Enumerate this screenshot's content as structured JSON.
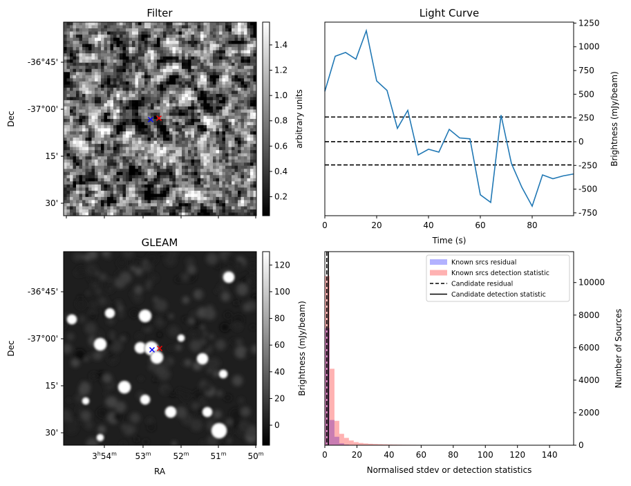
{
  "chart_data": [
    {
      "type": "heatmap",
      "title": "Filter",
      "ylabel": "Dec",
      "colorbar": {
        "label": "arbitrary units",
        "range": [
          0.05,
          1.58
        ],
        "ticks": [
          "0.2",
          "0.4",
          "0.6",
          "0.8",
          "1.0",
          "1.2",
          "1.4"
        ],
        "tick_values": [
          0.2,
          0.4,
          0.6,
          0.8,
          1.0,
          1.2,
          1.4
        ],
        "colormap": "gray"
      },
      "yticks": [
        "-36°45'",
        "-37°00'",
        "15'",
        "30'"
      ],
      "markers": [
        {
          "symbol": "x",
          "color": "#0000ff"
        },
        {
          "symbol": "x",
          "color": "#ff0000"
        }
      ]
    },
    {
      "type": "line",
      "title": "Light Curve",
      "xlabel": "Time (s)",
      "ylabel": "Brightness (mJy/beam)",
      "xlim": [
        0,
        96
      ],
      "ylim": [
        -780,
        1260
      ],
      "xticks": [
        0,
        20,
        40,
        60,
        80
      ],
      "yticks": [
        -750,
        -500,
        -250,
        0,
        250,
        500,
        750,
        1000,
        1250
      ],
      "y_axis_side": "right",
      "series": [
        {
          "color": "#1f77b4",
          "x": [
            0,
            4,
            8,
            12,
            16,
            20,
            24,
            28,
            32,
            36,
            40,
            44,
            48,
            52,
            56,
            60,
            64,
            68,
            72,
            76,
            80,
            84,
            88,
            92,
            96
          ],
          "values": [
            530,
            900,
            940,
            870,
            1170,
            640,
            540,
            140,
            330,
            -140,
            -80,
            -110,
            130,
            40,
            30,
            -560,
            -640,
            280,
            -230,
            -480,
            -680,
            -350,
            -390,
            -360,
            -340
          ]
        }
      ],
      "reference_lines": [
        {
          "y": 260,
          "style": "dashed",
          "color": "#000000"
        },
        {
          "y": 0,
          "style": "dashed",
          "color": "#000000"
        },
        {
          "y": -245,
          "style": "dashed",
          "color": "#000000"
        }
      ]
    },
    {
      "type": "heatmap",
      "title": "GLEAM",
      "xlabel": "RA",
      "ylabel": "Dec",
      "colorbar": {
        "label": "Brightness (mJy/beam)",
        "range": [
          -15,
          130
        ],
        "ticks": [
          "0",
          "20",
          "40",
          "60",
          "80",
          "100",
          "120"
        ],
        "tick_values": [
          0,
          20,
          40,
          60,
          80,
          100,
          120
        ],
        "colormap": "gray"
      },
      "xticks": [
        "3h54m",
        "53m",
        "52m",
        "51m",
        "50m"
      ],
      "yticks": [
        "-36°45'",
        "-37°00'",
        "15'",
        "30'"
      ],
      "markers": [
        {
          "symbol": "x",
          "color": "#0000ff"
        },
        {
          "symbol": "x",
          "color": "#ff0000"
        }
      ]
    },
    {
      "type": "bar",
      "xlabel": "Normalised stdev or detection statistics",
      "ylabel": "Number of Sources",
      "xlim": [
        0,
        155
      ],
      "ylim": [
        0,
        11900
      ],
      "xticks": [
        0,
        20,
        40,
        60,
        80,
        100,
        120,
        140
      ],
      "yticks": [
        0,
        2000,
        4000,
        6000,
        8000,
        10000
      ],
      "y_axis_side": "right",
      "legend_position": "top-right",
      "bin_width": 3,
      "series": [
        {
          "name": "Known srcs residual",
          "color": "#0000ff",
          "alpha": 0.3,
          "bins_start": 0,
          "values": [
            7200,
            1550,
            520,
            120,
            40,
            15,
            5
          ]
        },
        {
          "name": "Known srcs detection statistic",
          "color": "#ff0000",
          "alpha": 0.3,
          "bins_start": 0,
          "values": [
            10400,
            4700,
            1500,
            700,
            450,
            290,
            190,
            140,
            110,
            90,
            75,
            65,
            55,
            45,
            40,
            35,
            30,
            28,
            25,
            22,
            20,
            18,
            16,
            14,
            12,
            11,
            10,
            9,
            8,
            7,
            6,
            6,
            5,
            5,
            4,
            4,
            3,
            3,
            3,
            2,
            2,
            2,
            2,
            2,
            1,
            1,
            1,
            1,
            1,
            1,
            1
          ]
        }
      ],
      "reference_lines": [
        {
          "name": "Candidate residual",
          "x": 1.2,
          "style": "dashed",
          "color": "#000000"
        },
        {
          "name": "Candidate detection statistic",
          "x": 2.2,
          "style": "solid",
          "color": "#000000"
        }
      ]
    }
  ]
}
